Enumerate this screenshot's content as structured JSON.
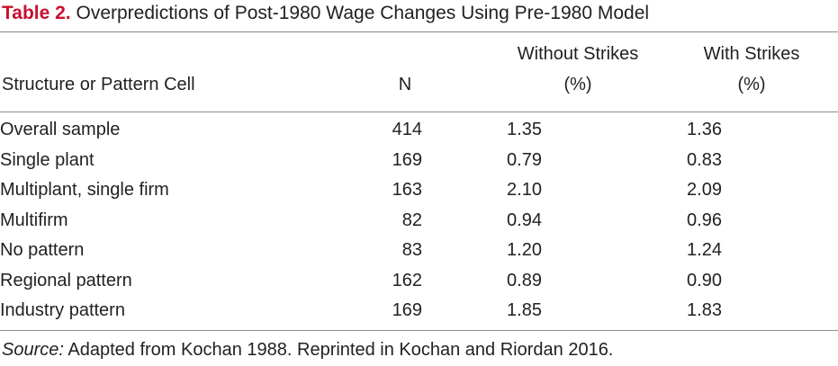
{
  "table": {
    "label": "Table 2.",
    "caption": "Overpredictions of Post-1980 Wage Changes Using Pre-1980 Model",
    "headers": {
      "structure": "Structure or Pattern Cell",
      "n": "N",
      "without_strikes": "Without Strikes",
      "without_strikes_unit": "(%)",
      "with_strikes": "With Strikes",
      "with_strikes_unit": "(%)"
    },
    "rows": [
      {
        "cell": "Overall sample",
        "n": "414",
        "without": "1.35",
        "with": "1.36"
      },
      {
        "cell": "Single plant",
        "n": "169",
        "without": "0.79",
        "with": "0.83"
      },
      {
        "cell": "Multiplant, single firm",
        "n": "163",
        "without": "2.10",
        "with": "2.09"
      },
      {
        "cell": "Multifirm",
        "n": "82",
        "without": "0.94",
        "with": "0.96"
      },
      {
        "cell": "No pattern",
        "n": "83",
        "without": "1.20",
        "with": "1.24"
      },
      {
        "cell": "Regional pattern",
        "n": "162",
        "without": "0.89",
        "with": "0.90"
      },
      {
        "cell": "Industry pattern",
        "n": "169",
        "without": "1.85",
        "with": "1.83"
      }
    ],
    "source_label": "Source:",
    "source_text": " Adapted from Kochan 1988. Reprinted in Kochan and Riordan 2016.",
    "accent_color": "#c8102e"
  }
}
